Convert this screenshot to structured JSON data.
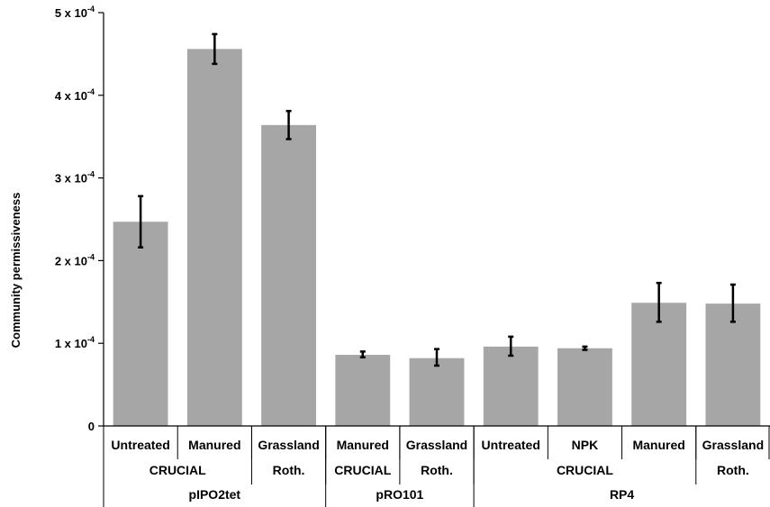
{
  "chart_data": {
    "type": "bar",
    "ylabel": "Community permissiveness",
    "ylim": [
      0,
      5
    ],
    "y_unit_multiplier": "x 10^-4",
    "y_ticks": [
      {
        "value": 0,
        "label": "0",
        "exp": ""
      },
      {
        "value": 1,
        "label": "1 x 10",
        "exp": "-4"
      },
      {
        "value": 2,
        "label": "2 x 10",
        "exp": "-4"
      },
      {
        "value": 3,
        "label": "3 x 10",
        "exp": "-4"
      },
      {
        "value": 4,
        "label": "4 x 10",
        "exp": "-4"
      },
      {
        "value": 5,
        "label": "5 x 10",
        "exp": "-4"
      }
    ],
    "bar_color": "#a6a6a6",
    "categories": [
      "Untreated",
      "Manured",
      "Grassland",
      "Manured",
      "Grassland",
      "Untreated",
      "NPK",
      "Manured",
      "Grassland"
    ],
    "values": [
      2.47,
      4.56,
      3.64,
      0.86,
      0.82,
      0.96,
      0.94,
      1.49,
      1.48
    ],
    "error_low": [
      2.16,
      4.38,
      3.47,
      0.83,
      0.73,
      0.85,
      0.92,
      1.26,
      1.26
    ],
    "error_high": [
      2.78,
      4.74,
      3.81,
      0.9,
      0.93,
      1.08,
      0.96,
      1.73,
      1.71
    ],
    "groups_level2": [
      {
        "label": "CRUCIAL",
        "start": 0,
        "end": 2
      },
      {
        "label": "Roth.",
        "start": 2,
        "end": 3
      },
      {
        "label": "CRUCIAL",
        "start": 3,
        "end": 4
      },
      {
        "label": "Roth.",
        "start": 4,
        "end": 5
      },
      {
        "label": "CRUCIAL",
        "start": 5,
        "end": 8
      },
      {
        "label": "Roth.",
        "start": 8,
        "end": 9
      }
    ],
    "groups_level3": [
      {
        "label": "pIPO2tet",
        "start": 0,
        "end": 3
      },
      {
        "label": "pRO101",
        "start": 3,
        "end": 5
      },
      {
        "label": "RP4",
        "start": 5,
        "end": 9
      }
    ]
  }
}
